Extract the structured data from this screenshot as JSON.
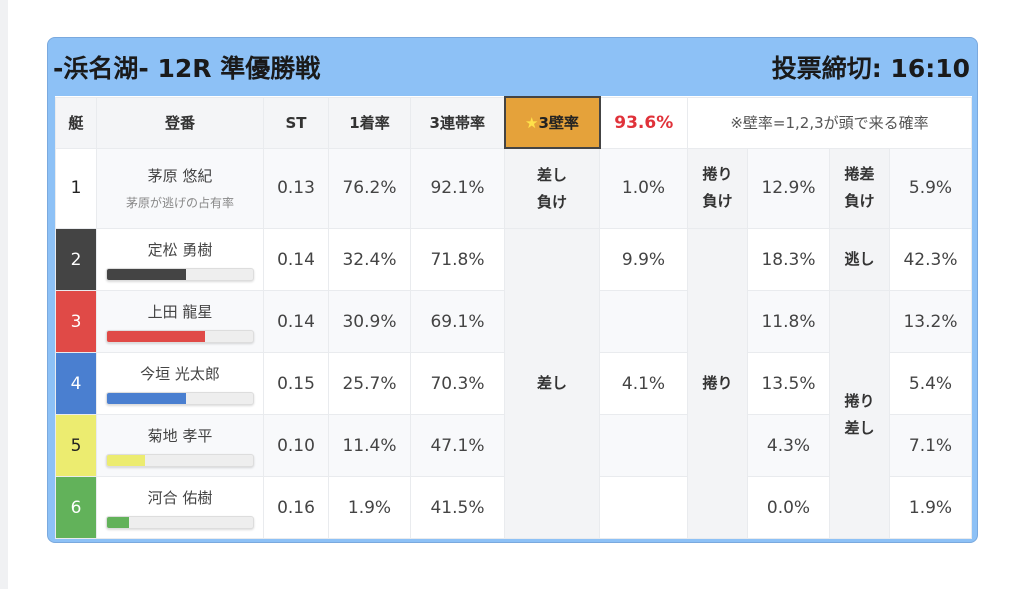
{
  "title": "-浜名湖- 12R 準優勝戦",
  "deadline": "投票締切: 16:10",
  "headers": {
    "boat": "艇",
    "name": "登番",
    "st": "ST",
    "first": "1着率",
    "top3": "3連帯率",
    "wall_label": "3壁率",
    "wall_value": "93.6%",
    "note": "※壁率=1,2,3が頭で来る確率"
  },
  "icons": {
    "star": "★"
  },
  "colors": {
    "accent": "#e5a23a",
    "wall_value": "#e0323a",
    "boat1": "#ffffff",
    "boat2": "#444444",
    "boat3": "#e04a47",
    "boat4": "#4a7fd0",
    "boat5": "#ecec70",
    "boat6": "#62b25a"
  },
  "racers": [
    {
      "boat": "1",
      "name": "茅原 悠紀",
      "sub": "茅原が逃げの占有率",
      "st": "0.13",
      "first": "76.2%",
      "top3": "92.1%",
      "bar": null
    },
    {
      "boat": "2",
      "name": "定松 勇樹",
      "st": "0.14",
      "first": "32.4%",
      "top3": "71.8%",
      "bar": 54
    },
    {
      "boat": "3",
      "name": "上田 龍星",
      "st": "0.14",
      "first": "30.9%",
      "top3": "69.1%",
      "bar": 67
    },
    {
      "boat": "4",
      "name": "今垣 光太郎",
      "st": "0.15",
      "first": "25.7%",
      "top3": "70.3%",
      "bar": 54
    },
    {
      "boat": "5",
      "name": "菊地 孝平",
      "st": "0.10",
      "first": "11.4%",
      "top3": "47.1%",
      "bar": 26
    },
    {
      "boat": "6",
      "name": "河合 佑樹",
      "st": "0.16",
      "first": "1.9%",
      "top3": "41.5%",
      "bar": 15
    }
  ],
  "patterns": {
    "a_row1_label": "差し負け",
    "a_label": "差し",
    "b_row1_label": "捲り負け",
    "b_label": "捲り",
    "c_row1_label": "捲差負け",
    "c_row2_label": "逃し",
    "c_label": "捲り差し",
    "a_values": [
      "1.0%",
      "9.9%",
      "",
      "4.1%",
      "",
      ""
    ],
    "b_values": [
      "12.9%",
      "18.3%",
      "11.8%",
      "13.5%",
      "4.3%",
      "0.0%"
    ],
    "c_values": [
      "5.9%",
      "42.3%",
      "13.2%",
      "5.4%",
      "7.1%",
      "1.9%"
    ]
  }
}
